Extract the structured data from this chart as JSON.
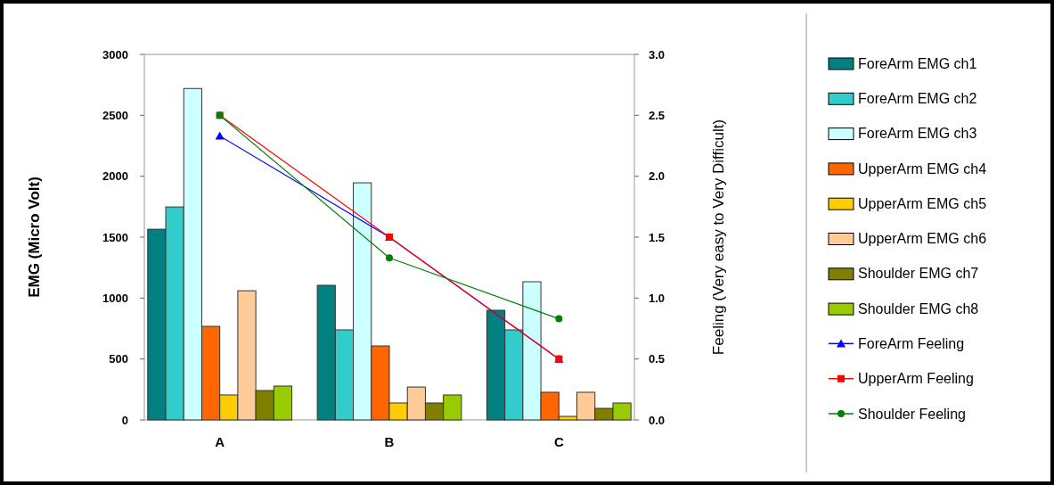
{
  "chart_data": {
    "type": "bar",
    "categories": [
      "A",
      "B",
      "C"
    ],
    "ylabel": "EMG (Micro Volt)",
    "y2label": "Feeling (Very easy to Very Difficult)",
    "ylim": [
      0,
      3000
    ],
    "yticks": [
      0,
      500,
      1000,
      1500,
      2000,
      2500,
      3000
    ],
    "y2lim": [
      0,
      3
    ],
    "y2ticks": [
      {
        "value": 0,
        "label": "0.0"
      },
      {
        "value": 0.5,
        "label": "0.5"
      },
      {
        "value": 1,
        "label": "1.0"
      },
      {
        "value": 1.5,
        "label": "1.5"
      },
      {
        "value": 2,
        "label": "2.0"
      },
      {
        "value": 2.5,
        "label": "2.5"
      },
      {
        "value": 3,
        "label": "3.0"
      }
    ],
    "grid": false,
    "legend": "right",
    "series": [
      {
        "name": "ForeArm EMG ch1",
        "color": "#008080",
        "values": [
          1565,
          1105,
          900
        ]
      },
      {
        "name": "ForeArm EMG ch2",
        "color": "#33cccc",
        "values": [
          1748,
          739,
          739
        ]
      },
      {
        "name": "ForeArm EMG ch3",
        "color": "#ccffff",
        "values": [
          2720,
          1946,
          1134
        ]
      },
      {
        "name": "UpperArm EMG ch4",
        "color": "#ff6600",
        "values": [
          768,
          607,
          227
        ]
      },
      {
        "name": "UpperArm EMG ch5",
        "color": "#ffcc00",
        "values": [
          205,
          139,
          29
        ]
      },
      {
        "name": "UpperArm EMG ch6",
        "color": "#ffcc99",
        "values": [
          1060,
          270,
          227
        ]
      },
      {
        "name": "Shoulder EMG ch7",
        "color": "#808000",
        "values": [
          241,
          139,
          95
        ]
      },
      {
        "name": "Shoulder EMG ch8",
        "color": "#99cc00",
        "values": [
          278,
          205,
          139
        ]
      },
      {
        "name": "ForeArm Feeling",
        "type": "line",
        "axis": "y2",
        "marker": "triangle",
        "color": "#0000ff",
        "values": [
          2.33,
          1.5,
          0.5
        ]
      },
      {
        "name": "UpperArm Feeling",
        "type": "line",
        "axis": "y2",
        "marker": "square",
        "color": "#ff0000",
        "values": [
          2.5,
          1.5,
          0.5
        ]
      },
      {
        "name": "Shoulder Feeling",
        "type": "line",
        "axis": "y2",
        "marker": "circle",
        "color": "#008000",
        "values": [
          2.5,
          1.33,
          0.83
        ]
      }
    ]
  }
}
